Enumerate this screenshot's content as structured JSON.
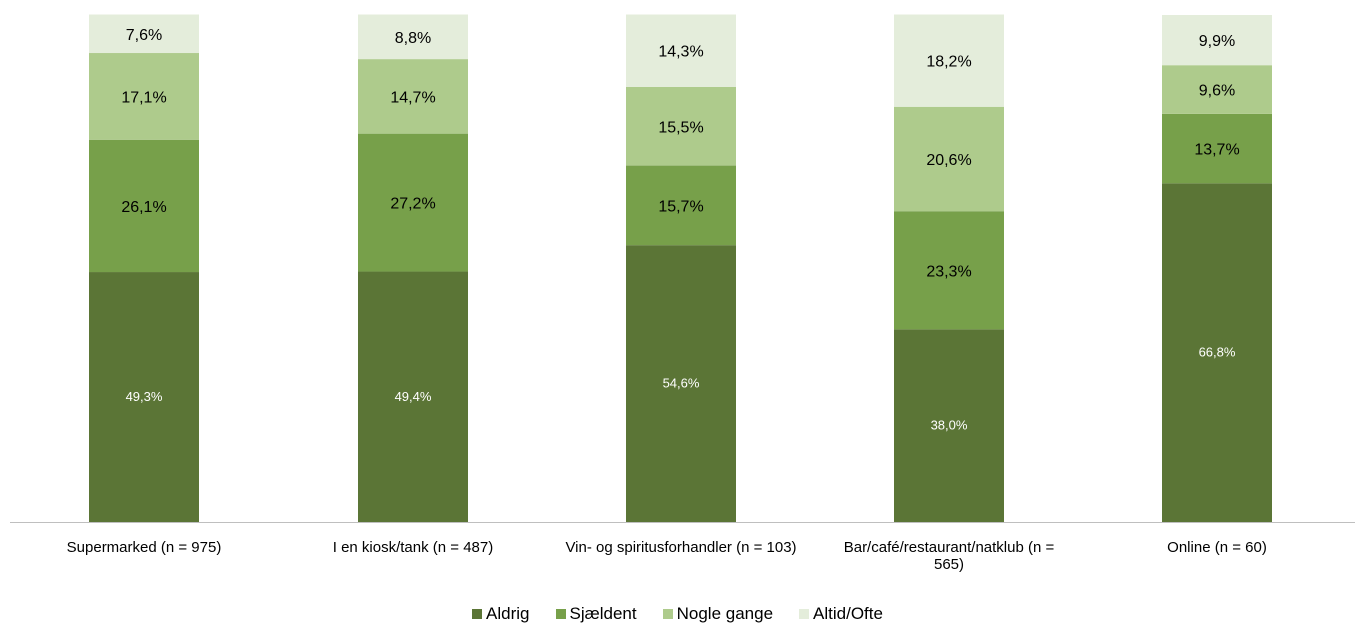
{
  "chart_data": {
    "type": "bar",
    "stacked": true,
    "title": "",
    "xlabel": "",
    "ylabel": "",
    "ylim": [
      0,
      100
    ],
    "grid": false,
    "legend_position": "bottom",
    "categories": [
      "Supermarked (n = 975)",
      "I en kiosk/tank (n = 487)",
      "Vin- og spiritusforhandler (n = 103)",
      "Bar/café/restaurant/natklub (n = 565)",
      "Online (n = 60)"
    ],
    "series": [
      {
        "name": "Aldrig",
        "color": "#5b7536",
        "label_color": "#ffffff",
        "values": [
          49.3,
          49.4,
          54.6,
          38.0,
          66.8
        ],
        "labels": [
          "49,3%",
          "49,4%",
          "54,6%",
          "38,0%",
          "66,8%"
        ]
      },
      {
        "name": "Sjældent",
        "color": "#77a04a",
        "label_color": "#000000",
        "values": [
          26.1,
          27.2,
          15.7,
          23.3,
          13.7
        ],
        "labels": [
          "26,1%",
          "27,2%",
          "15,7%",
          "23,3%",
          "13,7%"
        ]
      },
      {
        "name": "Nogle gange",
        "color": "#aecb8c",
        "label_color": "#000000",
        "values": [
          17.1,
          14.7,
          15.5,
          20.6,
          9.6
        ],
        "labels": [
          "17,1%",
          "14,7%",
          "15,5%",
          "20,6%",
          "9,6%"
        ]
      },
      {
        "name": "Altid/Ofte",
        "color": "#e4eddb",
        "label_color": "#000000",
        "values": [
          7.6,
          8.8,
          14.3,
          18.2,
          9.9
        ],
        "labels": [
          "7,6%",
          "8,8%",
          "14,3%",
          "18,2%",
          "9,9%"
        ]
      }
    ]
  }
}
